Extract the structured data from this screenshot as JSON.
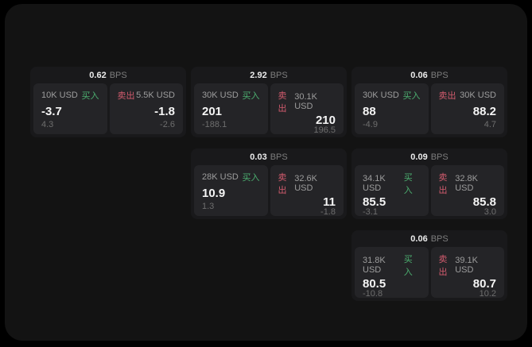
{
  "labels": {
    "bps": "BPS",
    "buy": "买入",
    "sell": "卖出"
  },
  "colors": {
    "buy": "#4caf70",
    "sell": "#d25b6e",
    "screen_bg": "#131313",
    "card_bg": "#19191b",
    "panel_bg": "#242427"
  },
  "cards": [
    {
      "bps": "0.62",
      "buy": {
        "size": "10K USD",
        "price": "-3.7",
        "delta": "4.3"
      },
      "sell": {
        "size": "5.5K USD",
        "price": "-1.8",
        "delta": "-2.6"
      },
      "grid": {
        "row": 1,
        "col": 1
      }
    },
    {
      "bps": "2.92",
      "buy": {
        "size": "30K USD",
        "price": "201",
        "delta": "-188.1"
      },
      "sell": {
        "size": "30.1K USD",
        "price": "210",
        "delta": "196.5"
      },
      "grid": {
        "row": 1,
        "col": 2
      }
    },
    {
      "bps": "0.06",
      "buy": {
        "size": "30K USD",
        "price": "88",
        "delta": "-4.9"
      },
      "sell": {
        "size": "30K USD",
        "price": "88.2",
        "delta": "4.7"
      },
      "grid": {
        "row": 1,
        "col": 3
      }
    },
    {
      "bps": "0.03",
      "buy": {
        "size": "28K USD",
        "price": "10.9",
        "delta": "1.3"
      },
      "sell": {
        "size": "32.6K USD",
        "price": "11",
        "delta": "-1.8"
      },
      "grid": {
        "row": 2,
        "col": 2
      }
    },
    {
      "bps": "0.09",
      "buy": {
        "size": "34.1K USD",
        "price": "85.5",
        "delta": "-3.1"
      },
      "sell": {
        "size": "32.8K USD",
        "price": "85.8",
        "delta": "3.0"
      },
      "grid": {
        "row": 2,
        "col": 3
      }
    },
    {
      "bps": "0.06",
      "buy": {
        "size": "31.8K USD",
        "price": "80.5",
        "delta": "-10.8"
      },
      "sell": {
        "size": "39.1K USD",
        "price": "80.7",
        "delta": "10.2"
      },
      "grid": {
        "row": 3,
        "col": 3
      }
    }
  ]
}
